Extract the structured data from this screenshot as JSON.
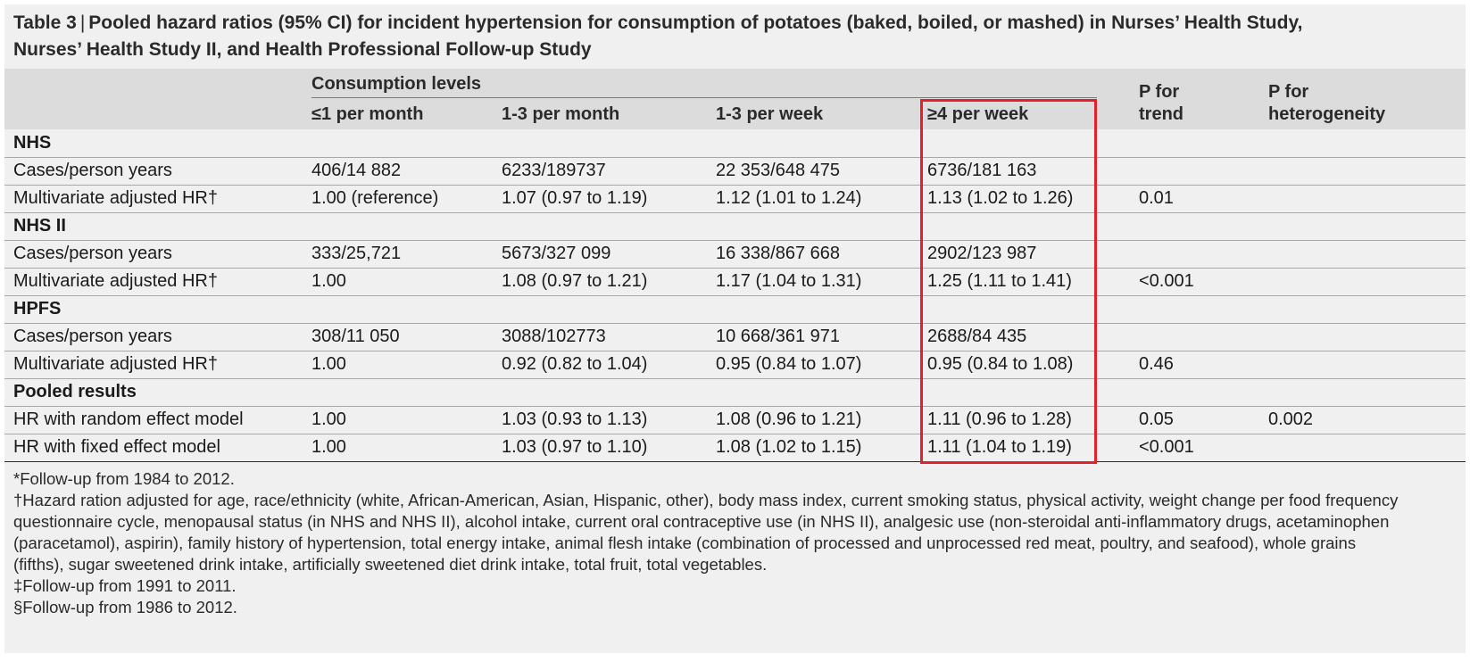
{
  "title": {
    "tag": "Table 3",
    "separator": "|",
    "text_line1": "Pooled hazard ratios (95% CI) for incident hypertension for consumption of potatoes (baked, boiled, or mashed) in Nurses’ Health Study,",
    "text_line2": "Nurses’ Health Study II, and Health Professional Follow-up Study"
  },
  "header": {
    "group_label": "Consumption levels",
    "columns": [
      "≤1 per month",
      "1-3 per month",
      "1-3 per week",
      "≥4 per week"
    ],
    "p_trend": [
      "P for",
      "trend"
    ],
    "p_het": [
      "P for",
      "heterogeneity"
    ]
  },
  "rows": [
    {
      "type": "section",
      "label": "NHS"
    },
    {
      "type": "data",
      "label": "Cases/person years",
      "values": [
        "406/14 882",
        "6233/189737",
        "22 353/648 475",
        "6736/181 163"
      ],
      "p_trend": "",
      "p_het": ""
    },
    {
      "type": "data",
      "label": "Multivariate adjusted HR†",
      "values": [
        "1.00 (reference)",
        "1.07 (0.97 to 1.19)",
        "1.12 (1.01 to 1.24)",
        "1.13 (1.02 to 1.26)"
      ],
      "p_trend": "0.01",
      "p_het": ""
    },
    {
      "type": "section",
      "label": "NHS II"
    },
    {
      "type": "data",
      "label": "Cases/person years",
      "values": [
        "333/25,721",
        "5673/327 099",
        "16 338/867 668",
        "2902/123 987"
      ],
      "p_trend": "",
      "p_het": ""
    },
    {
      "type": "data",
      "label": "Multivariate adjusted HR†",
      "values": [
        "1.00",
        "1.08 (0.97 to 1.21)",
        "1.17 (1.04 to 1.31)",
        "1.25 (1.11 to 1.41)"
      ],
      "p_trend": "<0.001",
      "p_het": ""
    },
    {
      "type": "section",
      "label": "HPFS"
    },
    {
      "type": "data",
      "label": "Cases/person years",
      "values": [
        "308/11 050",
        "3088/102773",
        "10 668/361 971",
        "2688/84 435"
      ],
      "p_trend": "",
      "p_het": ""
    },
    {
      "type": "data",
      "label": "Multivariate adjusted HR†",
      "values": [
        "1.00",
        "0.92 (0.82 to 1.04)",
        "0.95 (0.84 to 1.07)",
        "0.95 (0.84 to 1.08)"
      ],
      "p_trend": "0.46",
      "p_het": ""
    },
    {
      "type": "section",
      "label": "Pooled results"
    },
    {
      "type": "data",
      "label": "HR with random effect model",
      "values": [
        "1.00",
        "1.03 (0.93 to 1.13)",
        "1.08 (0.96 to 1.21)",
        "1.11 (0.96 to 1.28)"
      ],
      "p_trend": "0.05",
      "p_het": "0.002"
    },
    {
      "type": "data",
      "label": "HR with fixed effect model",
      "values": [
        "1.00",
        "1.03 (0.97 to 1.10)",
        "1.08 (1.02 to 1.15)",
        "1.11 (1.04 to 1.19)"
      ],
      "p_trend": "<0.001",
      "p_het": ""
    }
  ],
  "footnotes": [
    "*Follow-up from 1984 to 2012.",
    "†Hazard ration adjusted for age, race/ethnicity (white, African-American, Asian, Hispanic, other), body mass index, current smoking status, physical activity, weight change per food frequency",
    "questionnaire cycle, menopausal status (in NHS and NHS II), alcohol intake, current oral contraceptive use (in NHS II), analgesic use (non-steroidal anti-inflammatory drugs, acetaminophen",
    "(paracetamol), aspirin), family history of hypertension, total energy intake, animal flesh intake (combination of processed and unprocessed red meat, poultry, and seafood), whole grains",
    "(fifths), sugar sweetened drink intake, artificially sweetened diet drink intake, total fruit, total vegetables.",
    "‡Follow-up from 1991 to 2011.",
    "§Follow-up from 1986 to 2012."
  ],
  "colors": {
    "highlight": "#e3202c",
    "header_bg": "#dcdcdc",
    "panel_bg": "#f0f0f0"
  }
}
